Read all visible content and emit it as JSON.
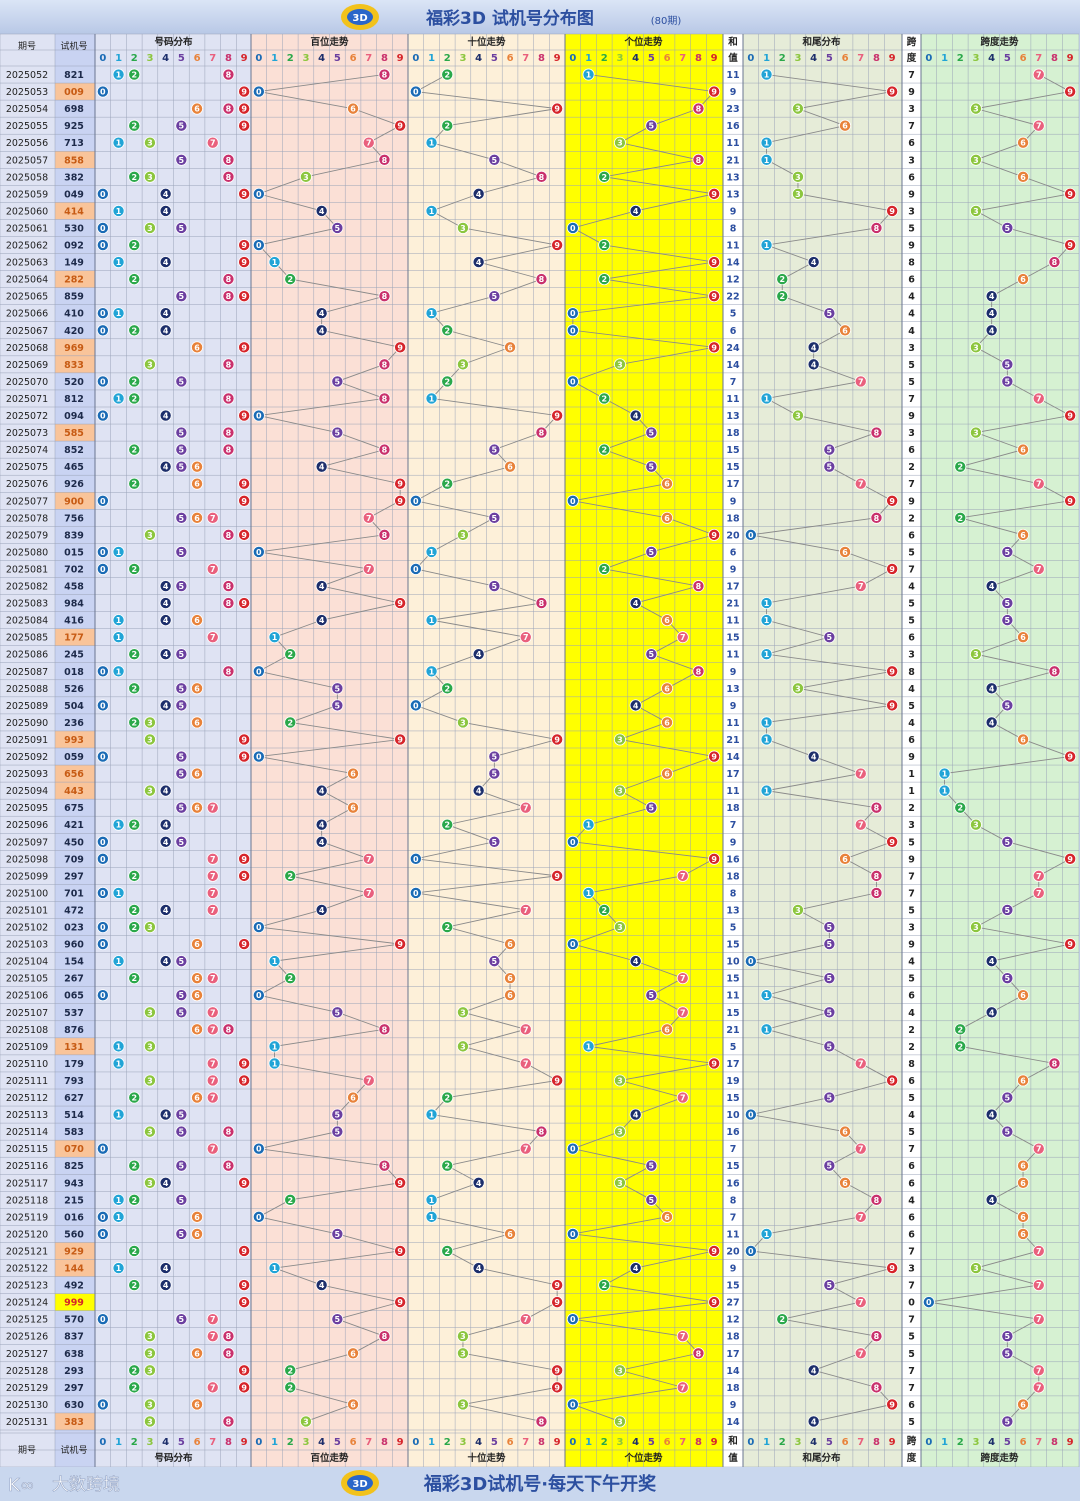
{
  "header": {
    "title": "福彩3D 试机号分布图",
    "subtitle": "(80期)"
  },
  "footer": {
    "brand": "大数跨境",
    "slogan": "福彩3D试机号·每天下午开奖"
  },
  "columns": {
    "issue": "期号",
    "trial": "试机号",
    "dist": "号码分布",
    "hundreds": "百位走势",
    "tens": "十位走势",
    "units": "个位走势",
    "sum": [
      "和",
      "值"
    ],
    "sumtail": "和尾分布",
    "span": [
      "跨",
      "度"
    ],
    "spantrend": "跨度走势"
  },
  "colors": {
    "digits": [
      "#1a6bb5",
      "#21a4d6",
      "#2aa84a",
      "#8cc63e",
      "#1c2e6b",
      "#6b3fa0",
      "#e8823a",
      "#e9607d",
      "#c9306c",
      "#d6242a"
    ],
    "dist_bg": "#dfe3f3",
    "hundreds_bg": "#fbe0d6",
    "tens_bg": "#fdf0d9",
    "units_bg": "#ffff00",
    "sumtail_bg": "#e6ecd8",
    "spantrend_bg": "#d6f1d2",
    "trial_bg": "#f9c49a",
    "highlight_yellow": "#ffff00"
  },
  "chart_data": {
    "type": "table",
    "rows": [
      {
        "issue": "2025052",
        "number": "821",
        "style": "plain"
      },
      {
        "issue": "2025053",
        "number": "009",
        "style": "orange"
      },
      {
        "issue": "2025054",
        "number": "698",
        "style": "plain"
      },
      {
        "issue": "2025055",
        "number": "925",
        "style": "plain"
      },
      {
        "issue": "2025056",
        "number": "713",
        "style": "plain"
      },
      {
        "issue": "2025057",
        "number": "858",
        "style": "orange"
      },
      {
        "issue": "2025058",
        "number": "382",
        "style": "plain"
      },
      {
        "issue": "2025059",
        "number": "049",
        "style": "plain"
      },
      {
        "issue": "2025060",
        "number": "414",
        "style": "orange"
      },
      {
        "issue": "2025061",
        "number": "530",
        "style": "plain"
      },
      {
        "issue": "2025062",
        "number": "092",
        "style": "plain"
      },
      {
        "issue": "2025063",
        "number": "149",
        "style": "plain"
      },
      {
        "issue": "2025064",
        "number": "282",
        "style": "orange"
      },
      {
        "issue": "2025065",
        "number": "859",
        "style": "plain"
      },
      {
        "issue": "2025066",
        "number": "410",
        "style": "plain"
      },
      {
        "issue": "2025067",
        "number": "420",
        "style": "plain"
      },
      {
        "issue": "2025068",
        "number": "969",
        "style": "orange"
      },
      {
        "issue": "2025069",
        "number": "833",
        "style": "orange"
      },
      {
        "issue": "2025070",
        "number": "520",
        "style": "plain"
      },
      {
        "issue": "2025071",
        "number": "812",
        "style": "plain"
      },
      {
        "issue": "2025072",
        "number": "094",
        "style": "plain"
      },
      {
        "issue": "2025073",
        "number": "585",
        "style": "orange"
      },
      {
        "issue": "2025074",
        "number": "852",
        "style": "plain"
      },
      {
        "issue": "2025075",
        "number": "465",
        "style": "plain"
      },
      {
        "issue": "2025076",
        "number": "926",
        "style": "plain"
      },
      {
        "issue": "2025077",
        "number": "900",
        "style": "orange"
      },
      {
        "issue": "2025078",
        "number": "756",
        "style": "plain"
      },
      {
        "issue": "2025079",
        "number": "839",
        "style": "plain"
      },
      {
        "issue": "2025080",
        "number": "015",
        "style": "plain"
      },
      {
        "issue": "2025081",
        "number": "702",
        "style": "plain"
      },
      {
        "issue": "2025082",
        "number": "458",
        "style": "plain"
      },
      {
        "issue": "2025083",
        "number": "984",
        "style": "plain"
      },
      {
        "issue": "2025084",
        "number": "416",
        "style": "plain"
      },
      {
        "issue": "2025085",
        "number": "177",
        "style": "orange"
      },
      {
        "issue": "2025086",
        "number": "245",
        "style": "plain"
      },
      {
        "issue": "2025087",
        "number": "018",
        "style": "plain"
      },
      {
        "issue": "2025088",
        "number": "526",
        "style": "plain"
      },
      {
        "issue": "2025089",
        "number": "504",
        "style": "plain"
      },
      {
        "issue": "2025090",
        "number": "236",
        "style": "plain"
      },
      {
        "issue": "2025091",
        "number": "993",
        "style": "orange"
      },
      {
        "issue": "2025092",
        "number": "059",
        "style": "plain"
      },
      {
        "issue": "2025093",
        "number": "656",
        "style": "orange"
      },
      {
        "issue": "2025094",
        "number": "443",
        "style": "orange"
      },
      {
        "issue": "2025095",
        "number": "675",
        "style": "plain"
      },
      {
        "issue": "2025096",
        "number": "421",
        "style": "plain"
      },
      {
        "issue": "2025097",
        "number": "450",
        "style": "plain"
      },
      {
        "issue": "2025098",
        "number": "709",
        "style": "plain"
      },
      {
        "issue": "2025099",
        "number": "297",
        "style": "plain"
      },
      {
        "issue": "2025100",
        "number": "701",
        "style": "plain"
      },
      {
        "issue": "2025101",
        "number": "472",
        "style": "plain"
      },
      {
        "issue": "2025102",
        "number": "023",
        "style": "plain"
      },
      {
        "issue": "2025103",
        "number": "960",
        "style": "plain"
      },
      {
        "issue": "2025104",
        "number": "154",
        "style": "plain"
      },
      {
        "issue": "2025105",
        "number": "267",
        "style": "plain"
      },
      {
        "issue": "2025106",
        "number": "065",
        "style": "plain"
      },
      {
        "issue": "2025107",
        "number": "537",
        "style": "plain"
      },
      {
        "issue": "2025108",
        "number": "876",
        "style": "plain"
      },
      {
        "issue": "2025109",
        "number": "131",
        "style": "orange"
      },
      {
        "issue": "2025110",
        "number": "179",
        "style": "plain"
      },
      {
        "issue": "2025111",
        "number": "793",
        "style": "plain"
      },
      {
        "issue": "2025112",
        "number": "627",
        "style": "plain"
      },
      {
        "issue": "2025113",
        "number": "514",
        "style": "plain"
      },
      {
        "issue": "2025114",
        "number": "583",
        "style": "plain"
      },
      {
        "issue": "2025115",
        "number": "070",
        "style": "orange"
      },
      {
        "issue": "2025116",
        "number": "825",
        "style": "plain"
      },
      {
        "issue": "2025117",
        "number": "943",
        "style": "plain"
      },
      {
        "issue": "2025118",
        "number": "215",
        "style": "plain"
      },
      {
        "issue": "2025119",
        "number": "016",
        "style": "plain"
      },
      {
        "issue": "2025120",
        "number": "560",
        "style": "plain"
      },
      {
        "issue": "2025121",
        "number": "929",
        "style": "orange"
      },
      {
        "issue": "2025122",
        "number": "144",
        "style": "orange"
      },
      {
        "issue": "2025123",
        "number": "492",
        "style": "plain"
      },
      {
        "issue": "2025124",
        "number": "999",
        "style": "yellow"
      },
      {
        "issue": "2025125",
        "number": "570",
        "style": "plain"
      },
      {
        "issue": "2025126",
        "number": "837",
        "style": "plain"
      },
      {
        "issue": "2025127",
        "number": "638",
        "style": "plain"
      },
      {
        "issue": "2025128",
        "number": "293",
        "style": "plain"
      },
      {
        "issue": "2025129",
        "number": "297",
        "style": "plain"
      },
      {
        "issue": "2025130",
        "number": "630",
        "style": "plain"
      },
      {
        "issue": "2025131",
        "number": "383",
        "style": "orange"
      }
    ]
  }
}
